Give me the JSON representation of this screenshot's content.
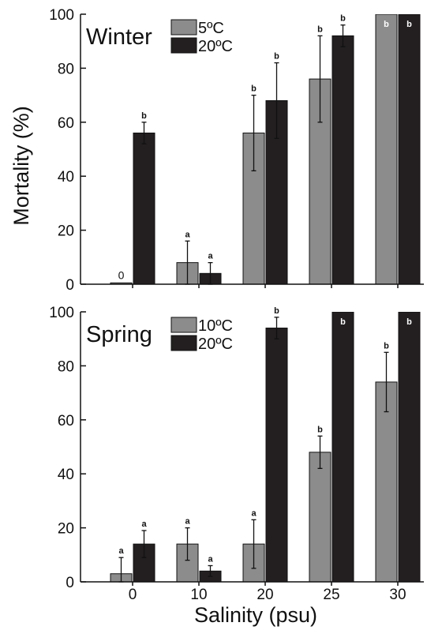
{
  "chart_data": [
    {
      "type": "bar",
      "title": "Winter",
      "categories": [
        "0",
        "10",
        "20",
        "25",
        "30"
      ],
      "series": [
        {
          "name": "5ºC",
          "color": "#8c8c8c",
          "values": [
            0.5,
            8,
            56,
            76,
            100
          ],
          "errors": [
            0,
            8,
            14,
            16,
            0
          ],
          "labels": [
            "0",
            "a",
            "",
            "",
            "b"
          ]
        },
        {
          "name": "20ºC",
          "color": "#231f20",
          "values": [
            56,
            4,
            68,
            92,
            100
          ],
          "errors": [
            4,
            4,
            14,
            4,
            0
          ],
          "labels": [
            "b",
            "a",
            "b",
            "b",
            "b"
          ]
        }
      ],
      "extra_labels": [
        "b",
        "b"
      ],
      "ylim": [
        0,
        100
      ],
      "yticks": [
        "0",
        "20",
        "40",
        "60",
        "80",
        "100"
      ],
      "legend_position": "top-left"
    },
    {
      "type": "bar",
      "title": "Spring",
      "categories": [
        "0",
        "10",
        "20",
        "25",
        "30"
      ],
      "series": [
        {
          "name": "10ºC",
          "color": "#8c8c8c",
          "values": [
            3,
            14,
            14,
            48,
            74
          ],
          "errors": [
            6,
            6,
            9,
            6,
            11
          ],
          "labels": [
            "a",
            "a",
            "a",
            "b",
            "b"
          ]
        },
        {
          "name": "20ºC",
          "color": "#231f20",
          "values": [
            14,
            4,
            94,
            100,
            100
          ],
          "errors": [
            5,
            2,
            4,
            0,
            0
          ],
          "labels": [
            "a",
            "a",
            "b",
            "b",
            "b"
          ]
        }
      ],
      "ylim": [
        0,
        100
      ],
      "yticks": [
        "0",
        "20",
        "40",
        "60",
        "80",
        "100"
      ],
      "legend_position": "top-left"
    }
  ],
  "axes": {
    "ylabel": "Mortality (%)",
    "xlabel": "Salinity (psu)"
  }
}
